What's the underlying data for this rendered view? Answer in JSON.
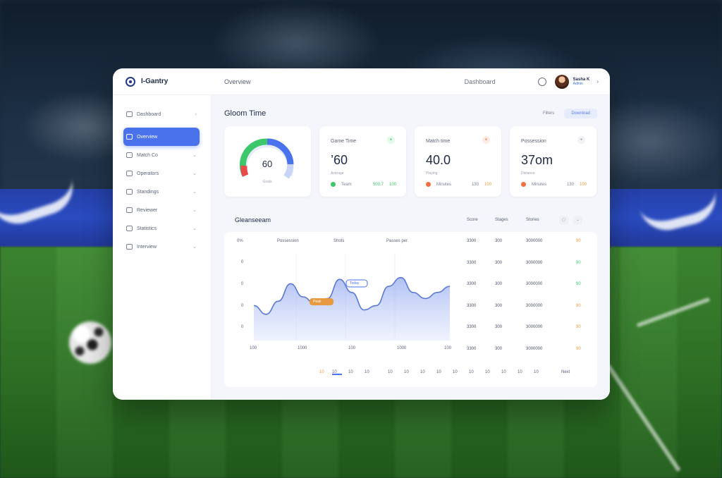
{
  "app": {
    "brand": "I-Gantry",
    "top_tab": "Overview",
    "search": "Dashboard",
    "user": {
      "name": "Sasha K",
      "role": "Admin"
    }
  },
  "sidebar": {
    "items": [
      {
        "label": "Dashboard",
        "icon": "home-icon",
        "active": false
      },
      {
        "label": "Overview",
        "icon": "grid-icon",
        "active": true
      },
      {
        "label": "Match Co",
        "icon": "calendar-icon",
        "active": false
      },
      {
        "label": "Operators",
        "icon": "users-icon",
        "active": false
      },
      {
        "label": "Standings",
        "icon": "table-icon",
        "active": false
      },
      {
        "label": "Reviewer",
        "icon": "document-icon",
        "active": false
      },
      {
        "label": "Statistics",
        "icon": "chart-icon",
        "active": false
      },
      {
        "label": "Interview",
        "icon": "mic-icon",
        "active": false
      }
    ]
  },
  "main": {
    "title": "Gloom Time",
    "btn_secondary": "Filters",
    "btn_primary": "Download"
  },
  "gauge": {
    "value": "60",
    "label": "Goals",
    "fraction": 0.6,
    "green": "#3cc86a",
    "red": "#e84a4a",
    "blue": "#4a72ec"
  },
  "stats": [
    {
      "title": "Game Time",
      "value": "’60",
      "sub": "Average",
      "dot_color": "#3cc86a",
      "foot_label": "Team",
      "foot_num": "500.7",
      "foot_extra": "100",
      "badge_color": "#3cc86a"
    },
    {
      "title": "Match time",
      "value": "40.0",
      "sub": "Playing",
      "dot_color": "#f07040",
      "foot_label": "Minutes",
      "foot_num": "130",
      "foot_extra": "100",
      "badge_color": "#f07040"
    },
    {
      "title": "Possession",
      "value": "37om",
      "sub": "Distance",
      "dot_color": "#f07040",
      "foot_label": "Minutes",
      "foot_num": "130",
      "foot_extra": "100",
      "badge_color": "#9aa0b0"
    }
  ],
  "panel": {
    "title": "Gleanseeam",
    "chart_headers": [
      "0%",
      "Possession",
      "Shots",
      "Passes per"
    ],
    "y_ticks": [
      "0",
      "0",
      "0",
      "0"
    ],
    "x_ticks": [
      "100",
      "1000",
      "100",
      "1000",
      "100"
    ],
    "tooltip1": "Peak",
    "tooltip2": "Today",
    "table_headers": [
      "Score",
      "Stages",
      "Stories"
    ],
    "rows": [
      {
        "a": "3300",
        "b": "300",
        "c": "3000000",
        "s": "90",
        "sc": "#e89a40"
      },
      {
        "a": "3300",
        "b": "300",
        "c": "3000000",
        "s": "90",
        "sc": "#3cc86a"
      },
      {
        "a": "3300",
        "b": "300",
        "c": "3000000",
        "s": "90",
        "sc": "#3cc86a"
      },
      {
        "a": "3300",
        "b": "300",
        "c": "3000000",
        "s": "90",
        "sc": "#e89a40"
      },
      {
        "a": "3300",
        "b": "300",
        "c": "3000000",
        "s": "90",
        "sc": "#e89a40"
      },
      {
        "a": "3300",
        "b": "300",
        "c": "3000000",
        "s": "90",
        "sc": "#e89a40"
      }
    ],
    "pager": [
      "10",
      "10",
      "10",
      "10",
      "10",
      "10",
      "10",
      "10",
      "10",
      "10",
      "10",
      "10",
      "10",
      "10",
      "Next"
    ]
  },
  "chart_data": {
    "type": "area",
    "x": [
      0,
      1,
      2,
      3,
      4,
      5,
      6,
      7,
      8,
      9,
      10,
      11,
      12,
      13,
      14,
      15,
      16
    ],
    "y": [
      40,
      30,
      45,
      65,
      50,
      42,
      48,
      70,
      55,
      35,
      40,
      62,
      72,
      55,
      48,
      55,
      62
    ],
    "ylim": [
      0,
      100
    ]
  }
}
